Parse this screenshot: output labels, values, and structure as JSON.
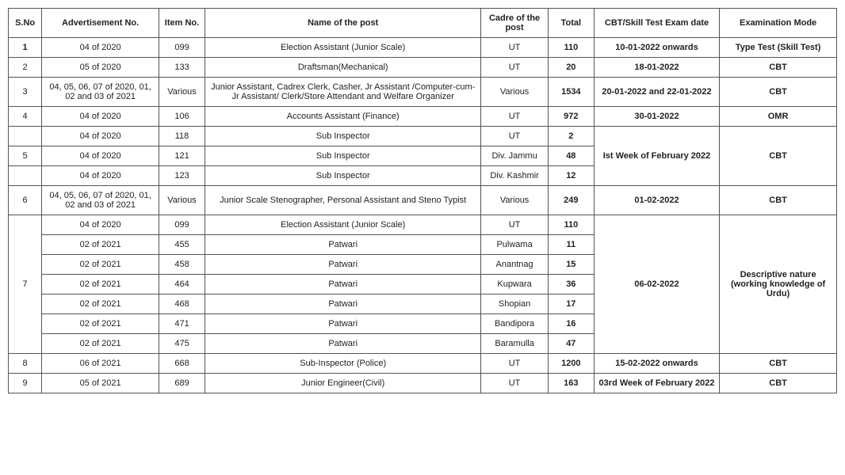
{
  "headers": {
    "sno": "S.No",
    "adv": "Advertisement No.",
    "item": "Item No.",
    "name": "Name of the post",
    "cadre": "Cadre of the post",
    "total": "Total",
    "date": "CBT/Skill Test Exam date",
    "mode": "Examination Mode"
  },
  "rows": {
    "r1": {
      "sno": "1",
      "adv": "04 of 2020",
      "item": "099",
      "name": "Election Assistant (Junior Scale)",
      "cadre": "UT",
      "total": "110",
      "date": "10-01-2022 onwards",
      "mode": "Type Test (Skill Test)"
    },
    "r2": {
      "sno": "2",
      "adv": "05 of 2020",
      "item": "133",
      "name": "Draftsman(Mechanical)",
      "cadre": "UT",
      "total": "20",
      "date": "18-01-2022",
      "mode": "CBT"
    },
    "r3": {
      "sno": "3",
      "adv": "04, 05, 06, 07 of 2020, 01, 02 and 03 of 2021",
      "item": "Various",
      "name": "Junior Assistant, Cadrex Clerk, Casher, Jr Assistant /Computer-cum-Jr Assistant/ Clerk/Store Attendant and Welfare Organizer",
      "cadre": "Various",
      "total": "1534",
      "date": "20-01-2022 and 22-01-2022",
      "mode": "CBT"
    },
    "r4": {
      "sno": "4",
      "adv": "04 of 2020",
      "item": "106",
      "name": "Accounts Assistant (Finance)",
      "cadre": "UT",
      "total": "972",
      "date": "30-01-2022",
      "mode": "OMR"
    },
    "r5a": {
      "sno": "5",
      "adv": "04 of 2020",
      "item": "118",
      "name": "Sub Inspector",
      "cadre": "UT",
      "total": "2",
      "date": "Ist Week of February 2022",
      "mode": "CBT"
    },
    "r5b": {
      "adv": "04 of 2020",
      "item": "121",
      "name": "Sub Inspector",
      "cadre": "Div. Jammu",
      "total": "48"
    },
    "r5c": {
      "adv": "04 of 2020",
      "item": "123",
      "name": "Sub Inspector",
      "cadre": "Div. Kashmir",
      "total": "12"
    },
    "r6": {
      "sno": "6",
      "adv": "04, 05, 06, 07 of 2020, 01, 02 and 03 of 2021",
      "item": "Various",
      "name": "Junior Scale Stenographer, Personal Assistant and Steno Typist",
      "cadre": "Various",
      "total": "249",
      "date": "01-02-2022",
      "mode": "CBT"
    },
    "r7a": {
      "sno": "7",
      "adv": "04 of 2020",
      "item": "099",
      "name": "Election Assistant (Junior Scale)",
      "cadre": "UT",
      "total": "110",
      "date": "06-02-2022",
      "mode": "Descriptive nature (working knowledge of Urdu)"
    },
    "r7b": {
      "adv": "02 of 2021",
      "item": "455",
      "name": "Patwari",
      "cadre": "Pulwama",
      "total": "11"
    },
    "r7c": {
      "adv": "02 of 2021",
      "item": "458",
      "name": "Patwari",
      "cadre": "Anantnag",
      "total": "15"
    },
    "r7d": {
      "adv": "02 of 2021",
      "item": "464",
      "name": "Patwari",
      "cadre": "Kupwara",
      "total": "36"
    },
    "r7e": {
      "adv": "02 of 2021",
      "item": "468",
      "name": "Patwari",
      "cadre": "Shopian",
      "total": "17"
    },
    "r7f": {
      "adv": "02 of 2021",
      "item": "471",
      "name": "Patwari",
      "cadre": "Bandipora",
      "total": "16"
    },
    "r7g": {
      "adv": "02 of 2021",
      "item": "475",
      "name": "Patwari",
      "cadre": "Baramulla",
      "total": "47"
    },
    "r8": {
      "sno": "8",
      "adv": "06 of 2021",
      "item": "668",
      "name": "Sub-Inspector (Police)",
      "cadre": "UT",
      "total": "1200",
      "date": "15-02-2022 onwards",
      "mode": "CBT"
    },
    "r9": {
      "sno": "9",
      "adv": "05 of 2021",
      "item": "689",
      "name": "Junior Engineer(Civil)",
      "cadre": "UT",
      "total": "163",
      "date": "03rd Week of February 2022",
      "mode": "CBT"
    }
  }
}
